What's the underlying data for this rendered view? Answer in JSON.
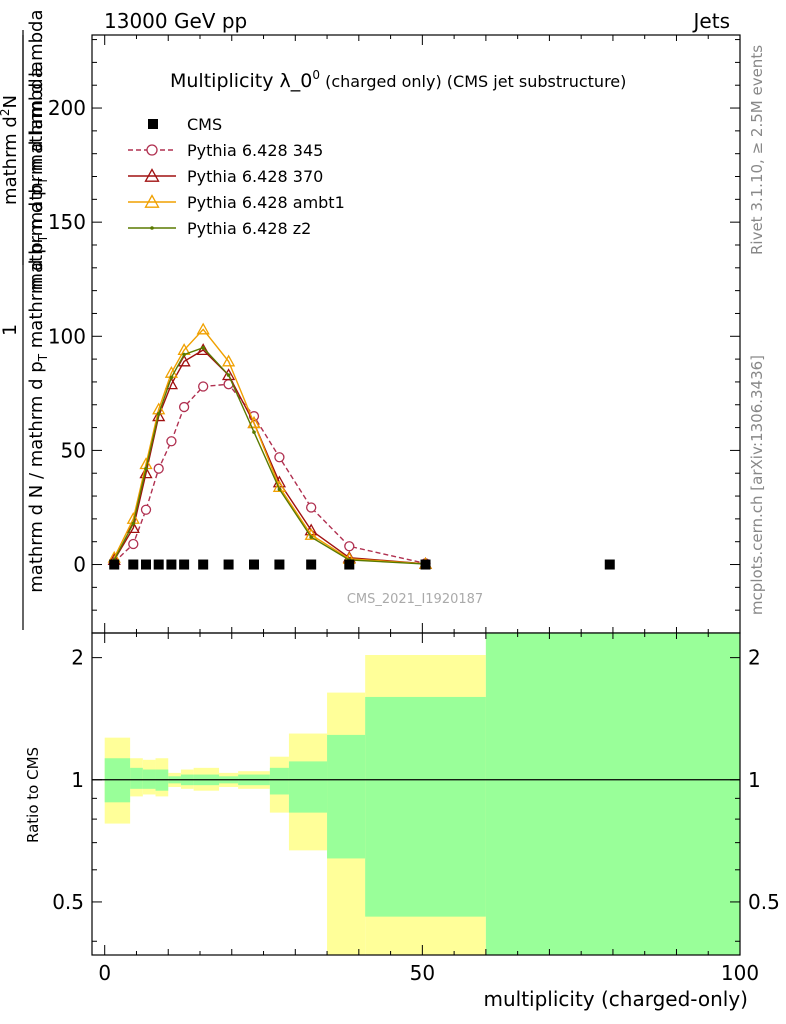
{
  "header": {
    "left": "13000 GeV pp",
    "right": "Jets"
  },
  "side_labels": {
    "rivet": "Rivet 3.1.10, ≥ 2.5M events",
    "mcplots": "mcplots.cern.ch [arXiv:1306.3436]"
  },
  "watermark": "CMS_2021_I1920187",
  "chart_data": [
    {
      "type": "line",
      "title_main": "Multiplicity λ_0",
      "title_sup": "0",
      "title_tail": " (charged only) (CMS jet substructure)",
      "ylabel_top": "1",
      "ylabel_line1": "mathrm d N / mathrm d p",
      "ylabel_sub1": "T",
      "ylabel_line1b": " mathrm d p",
      "ylabel_sub2": "T",
      "ylabel_line1c": " mathrm d lambda",
      "ylabel_numer": "mathrm d",
      "ylabel_numer_sup": "2",
      "ylabel_numer_tail": "N",
      "ylabel_denom": "mathrm d p",
      "ylabel_denom_sub": "T",
      "ylabel_denom_tail": " mathrm d lambda",
      "xlim": [
        -2,
        100
      ],
      "ylim": [
        -30,
        232
      ],
      "yticks": [
        0,
        50,
        100,
        150,
        200
      ],
      "xticks": [
        0,
        50,
        100
      ],
      "legend_position": "top-left",
      "series": [
        {
          "name": "CMS",
          "color": "#000000",
          "marker": "square",
          "x": [
            1.5,
            4.5,
            6.5,
            8.5,
            10.5,
            12.5,
            15.5,
            19.5,
            23.5,
            27.5,
            32.5,
            38.5,
            50.5,
            79.5
          ],
          "y": [
            0,
            0,
            0,
            0,
            0,
            0,
            0,
            0,
            0,
            0,
            0,
            0,
            0,
            0
          ]
        },
        {
          "name": "Pythia 6.428 345",
          "color": "#b03050",
          "dashed": true,
          "marker": "circle",
          "x": [
            1.5,
            4.5,
            6.5,
            8.5,
            10.5,
            12.5,
            15.5,
            19.5,
            23.5,
            27.5,
            32.5,
            38.5,
            50.5
          ],
          "y": [
            1,
            9,
            24,
            42,
            54,
            69,
            78,
            79,
            65,
            47,
            25,
            8,
            0.5
          ]
        },
        {
          "name": "Pythia 6.428 370",
          "color": "#a01010",
          "dashed": false,
          "marker": "triangle",
          "x": [
            1.5,
            4.5,
            6.5,
            8.5,
            10.5,
            12.5,
            15.5,
            19.5,
            23.5,
            27.5,
            32.5,
            38.5,
            50.5
          ],
          "y": [
            2,
            16,
            40,
            65,
            79,
            89,
            94,
            83,
            62,
            36,
            15,
            3,
            0.3
          ]
        },
        {
          "name": "Pythia 6.428 ambt1",
          "color": "#f0a000",
          "dashed": false,
          "marker": "triangle",
          "x": [
            1.5,
            4.5,
            6.5,
            8.5,
            10.5,
            12.5,
            15.5,
            19.5,
            23.5,
            27.5,
            32.5,
            38.5,
            50.5
          ],
          "y": [
            3,
            20,
            44,
            68,
            84,
            94,
            103,
            89,
            62,
            34,
            13,
            2.5,
            0.3
          ]
        },
        {
          "name": "Pythia 6.428 z2",
          "color": "#5a7a00",
          "dashed": false,
          "marker": "dot",
          "x": [
            1.5,
            4.5,
            6.5,
            8.5,
            10.5,
            12.5,
            15.5,
            19.5,
            23.5,
            27.5,
            32.5,
            38.5,
            50.5
          ],
          "y": [
            2,
            18,
            42,
            66,
            82,
            92,
            95,
            83,
            58,
            33,
            12,
            2,
            0.2
          ]
        }
      ]
    },
    {
      "type": "area",
      "ylabel": "Ratio to CMS",
      "xlabel": "multiplicity (charged-only)",
      "xlim": [
        -2,
        100
      ],
      "ylim": [
        0.37,
        2.3
      ],
      "scale": "log",
      "yticks": [
        0.5,
        1,
        2
      ],
      "ytick_labels": [
        "0.5",
        "1",
        "2"
      ],
      "xticks": [
        0,
        50,
        100
      ],
      "xtick_labels": [
        "0",
        "50",
        "100"
      ],
      "reference_line": 1,
      "bins": [
        {
          "x0": 0,
          "x1": 4,
          "outer_lo": 0.78,
          "outer_hi": 1.27,
          "inner_lo": 0.88,
          "inner_hi": 1.13
        },
        {
          "x0": 4,
          "x1": 6,
          "outer_lo": 0.91,
          "outer_hi": 1.13,
          "inner_lo": 0.95,
          "inner_hi": 1.07
        },
        {
          "x0": 6,
          "x1": 8,
          "outer_lo": 0.92,
          "outer_hi": 1.12,
          "inner_lo": 0.95,
          "inner_hi": 1.06
        },
        {
          "x0": 8,
          "x1": 10,
          "outer_lo": 0.91,
          "outer_hi": 1.13,
          "inner_lo": 0.94,
          "inner_hi": 1.06
        },
        {
          "x0": 10,
          "x1": 12,
          "outer_lo": 0.96,
          "outer_hi": 1.04,
          "inner_lo": 0.98,
          "inner_hi": 1.02
        },
        {
          "x0": 12,
          "x1": 14,
          "outer_lo": 0.95,
          "outer_hi": 1.06,
          "inner_lo": 0.97,
          "inner_hi": 1.03
        },
        {
          "x0": 14,
          "x1": 18,
          "outer_lo": 0.94,
          "outer_hi": 1.07,
          "inner_lo": 0.97,
          "inner_hi": 1.03
        },
        {
          "x0": 18,
          "x1": 21,
          "outer_lo": 0.96,
          "outer_hi": 1.04,
          "inner_lo": 0.98,
          "inner_hi": 1.02
        },
        {
          "x0": 21,
          "x1": 26,
          "outer_lo": 0.95,
          "outer_hi": 1.05,
          "inner_lo": 0.97,
          "inner_hi": 1.03
        },
        {
          "x0": 26,
          "x1": 29,
          "outer_lo": 0.83,
          "outer_hi": 1.14,
          "inner_lo": 0.92,
          "inner_hi": 1.07
        },
        {
          "x0": 29,
          "x1": 35,
          "outer_lo": 0.67,
          "outer_hi": 1.3,
          "inner_lo": 0.83,
          "inner_hi": 1.11
        },
        {
          "x0": 35,
          "x1": 41,
          "outer_lo": 0.37,
          "outer_hi": 1.64,
          "inner_lo": 0.64,
          "inner_hi": 1.29
        },
        {
          "x0": 41,
          "x1": 60,
          "outer_lo": 0.37,
          "outer_hi": 2.03,
          "inner_lo": 0.46,
          "inner_hi": 1.6
        },
        {
          "x0": 60,
          "x1": 100,
          "outer_lo": 0.37,
          "outer_hi": 2.3,
          "inner_lo": 0.37,
          "inner_hi": 2.3
        }
      ],
      "band_colors": {
        "outer": "#ffff99",
        "inner": "#99ff99"
      }
    }
  ]
}
